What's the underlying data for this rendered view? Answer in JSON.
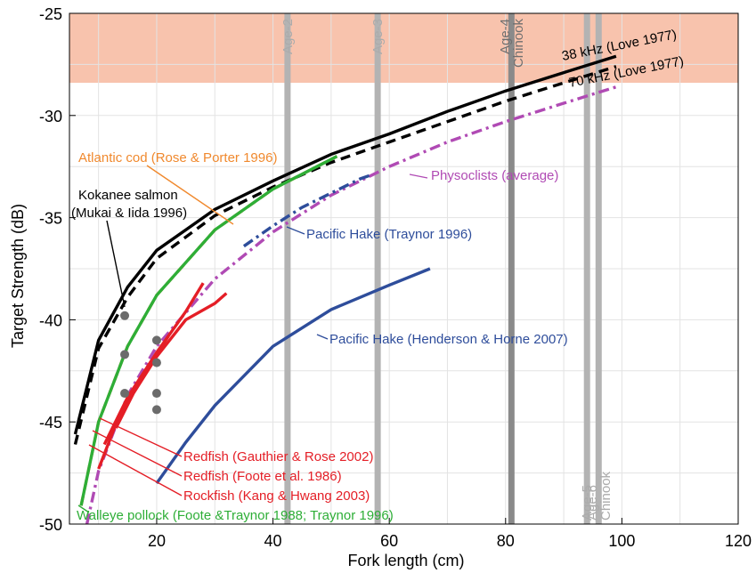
{
  "chart_data": {
    "type": "line",
    "xlabel": "Fork length (cm)",
    "ylabel": "Target Strength (dB)",
    "xlim": [
      5,
      120
    ],
    "ylim": [
      -50,
      -25
    ],
    "xticks": [
      20,
      40,
      60,
      80,
      100,
      120
    ],
    "yticks": [
      -50,
      -45,
      -40,
      -35,
      -30,
      -25
    ],
    "grid": true,
    "shaded_band": {
      "y_from": -28.4,
      "y_to": -25,
      "color": "#f8c3ad"
    },
    "age_lines": [
      {
        "x": 42.5,
        "label": "Age-2",
        "label_pos": "top",
        "color": "#b3b3b3"
      },
      {
        "x": 58,
        "label": "Age-3",
        "label_pos": "top",
        "color": "#b3b3b3"
      },
      {
        "x": 81,
        "label": "Age-4\nChinook",
        "label_pos": "top",
        "color": "#8a8a8a"
      },
      {
        "x": 94,
        "label": "Age-5",
        "label_pos": "bottom",
        "color": "#b3b3b3"
      },
      {
        "x": 96,
        "label": "Age-6\nChinook",
        "label_pos": "bottom",
        "color": "#b3b3b3"
      }
    ],
    "series": [
      {
        "name": "38 kHz (Love 1977)",
        "color": "#000000",
        "dash": "solid",
        "x": [
          6,
          10,
          15,
          20,
          30,
          40,
          50,
          60,
          70,
          80,
          90,
          99
        ],
        "y": [
          -45.6,
          -41.0,
          -38.4,
          -36.6,
          -34.6,
          -33.2,
          -31.9,
          -30.9,
          -29.8,
          -28.8,
          -27.9,
          -27.1
        ]
      },
      {
        "name": "70 kHz (Love 1977)",
        "color": "#000000",
        "dash": "dashed",
        "x": [
          6,
          10,
          15,
          20,
          30,
          40,
          50,
          60,
          70,
          80,
          90,
          99
        ],
        "y": [
          -46.1,
          -41.4,
          -38.9,
          -37.0,
          -34.9,
          -33.5,
          -32.3,
          -31.3,
          -30.3,
          -29.3,
          -28.4,
          -27.6
        ]
      },
      {
        "name": "Atlantic cod (Rose & Porter 1996)",
        "color": "#f0892e",
        "dash": "dashed",
        "x": [
          7,
          10,
          15,
          20,
          30,
          40,
          51
        ],
        "y": [
          -49.1,
          -45.0,
          -41.3,
          -38.8,
          -35.6,
          -33.6,
          -32.0
        ]
      },
      {
        "name": "Walleye pollock (Foote &Traynor 1988; Traynor 1996)",
        "color": "#2eae37",
        "dash": "solid",
        "x": [
          7,
          10,
          15,
          20,
          30,
          40,
          51
        ],
        "y": [
          -49.1,
          -45.0,
          -41.3,
          -38.8,
          -35.6,
          -33.6,
          -32.0
        ]
      },
      {
        "name": "Physoclists (average)",
        "color": "#b04ab4",
        "dash": "dashdot",
        "x": [
          8,
          10,
          15,
          20,
          30,
          40,
          50,
          60,
          70,
          80,
          90,
          99
        ],
        "y": [
          -50.0,
          -47.4,
          -43.7,
          -41.3,
          -38.0,
          -35.7,
          -33.9,
          -32.5,
          -31.3,
          -30.3,
          -29.4,
          -28.6
        ]
      },
      {
        "name": "Pacific Hake (Traynor 1996)",
        "color": "#2e4d9b",
        "dash": "dashdot",
        "x": [
          35,
          40,
          45,
          50,
          55,
          57
        ],
        "y": [
          -36.4,
          -35.4,
          -34.5,
          -33.8,
          -33.1,
          -32.9
        ]
      },
      {
        "name": "Pacific Hake (Henderson & Horne 2007)",
        "color": "#2e4d9b",
        "dash": "solid",
        "x": [
          20,
          25,
          30,
          40,
          50,
          60,
          67
        ],
        "y": [
          -48.0,
          -46.0,
          -44.2,
          -41.3,
          -39.5,
          -38.3,
          -37.5
        ]
      },
      {
        "name": "Redfish (Gauthier & Rose 2002)",
        "color": "#e41e26",
        "dash": "solid",
        "x": [
          11,
          15,
          20,
          25,
          28
        ],
        "y": [
          -46.1,
          -43.8,
          -41.6,
          -39.6,
          -38.2
        ]
      },
      {
        "name": "Redfish (Foote et al. 1986)",
        "color": "#e41e26",
        "dash": "solid",
        "x": [
          13,
          16,
          20,
          25,
          30,
          32
        ],
        "y": [
          -45.3,
          -43.6,
          -41.8,
          -40.0,
          -39.2,
          -38.7
        ]
      },
      {
        "name": "Rockfish (Kang & Hwang 2003)",
        "color": "#e41e26",
        "dash": "solid",
        "x": [
          10,
          13,
          15,
          18,
          20,
          22
        ],
        "y": [
          -47.3,
          -45.1,
          -43.9,
          -42.5,
          -41.7,
          -40.8
        ]
      }
    ],
    "points": {
      "name": "Kokanee salmon (Mukai & Iida 1996)",
      "color": "#6b6b6b",
      "x": [
        14.5,
        14.5,
        14.5,
        20,
        20,
        20,
        20
      ],
      "y": [
        -39.8,
        -41.7,
        -43.6,
        -41.0,
        -42.1,
        -43.6,
        -44.4
      ]
    },
    "annotations": [
      {
        "text": "38 kHz (Love 1977)",
        "color": "#000000"
      },
      {
        "text": "70 kHz (Love 1977)",
        "color": "#000000"
      },
      {
        "text": "Atlantic cod (Rose & Porter 1996)",
        "color": "#f0892e"
      },
      {
        "text": "Kokanee salmon",
        "color": "#000000"
      },
      {
        "text": "(Mukai & Iida 1996)",
        "color": "#000000"
      },
      {
        "text": "Physoclists (average)",
        "color": "#b04ab4"
      },
      {
        "text": "Pacific Hake (Traynor 1996)",
        "color": "#2e4d9b"
      },
      {
        "text": "Pacific Hake (Henderson & Horne 2007)",
        "color": "#2e4d9b"
      },
      {
        "text": "Redfish (Gauthier & Rose 2002)",
        "color": "#e41e26"
      },
      {
        "text": "Redfish (Foote et al. 1986)",
        "color": "#e41e26"
      },
      {
        "text": "Rockfish (Kang & Hwang 2003)",
        "color": "#e41e26"
      },
      {
        "text": "Walleye pollock (Foote &Traynor 1988; Traynor 1996)",
        "color": "#2eae37"
      }
    ]
  }
}
